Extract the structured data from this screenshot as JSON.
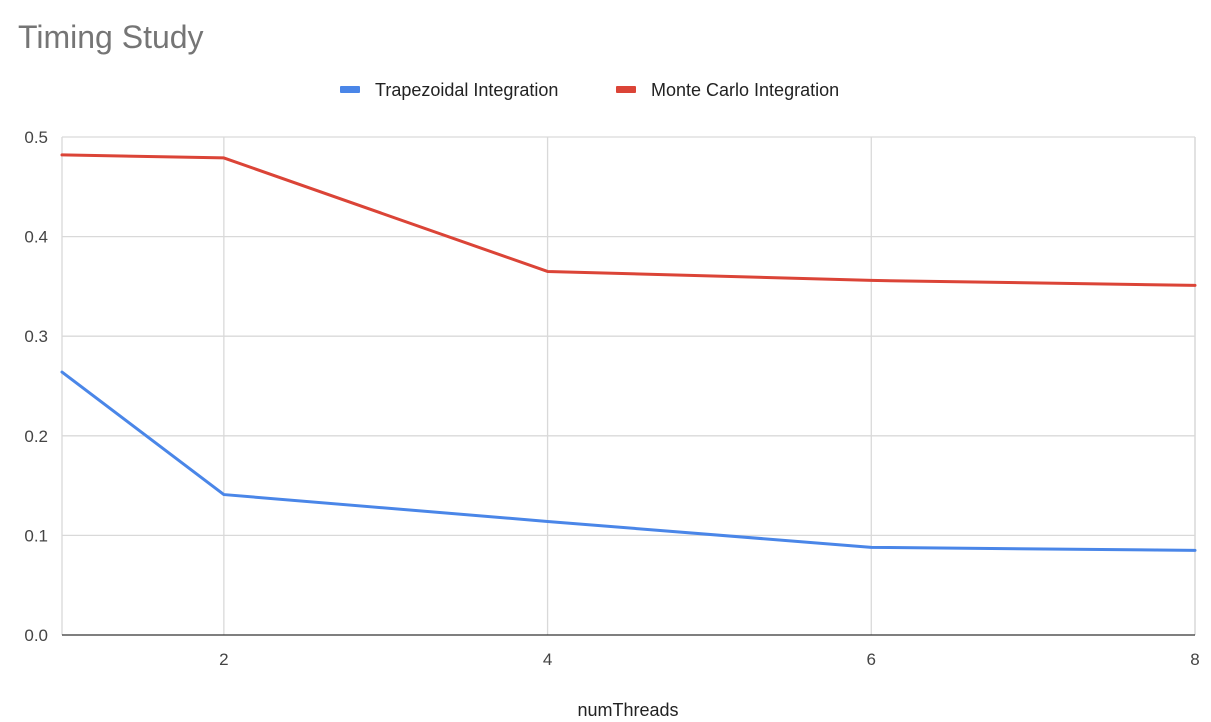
{
  "chart_data": {
    "type": "line",
    "title": "Timing Study",
    "xlabel": "numThreads",
    "ylabel": "",
    "xlim": [
      1,
      8
    ],
    "ylim": [
      0,
      0.5
    ],
    "x_ticks": [
      "2",
      "4",
      "6",
      "8"
    ],
    "y_ticks": [
      "0.0",
      "0.1",
      "0.2",
      "0.3",
      "0.4",
      "0.5"
    ],
    "grid": true,
    "legend_position": "top",
    "x": [
      1,
      2,
      4,
      6,
      8
    ],
    "series": [
      {
        "name": "Trapezoidal Integration",
        "color": "#4a86e8",
        "values": [
          0.264,
          0.141,
          0.114,
          0.088,
          0.085
        ]
      },
      {
        "name": "Monte Carlo Integration",
        "color": "#db4437",
        "values": [
          0.482,
          0.479,
          0.365,
          0.356,
          0.351
        ]
      }
    ]
  }
}
